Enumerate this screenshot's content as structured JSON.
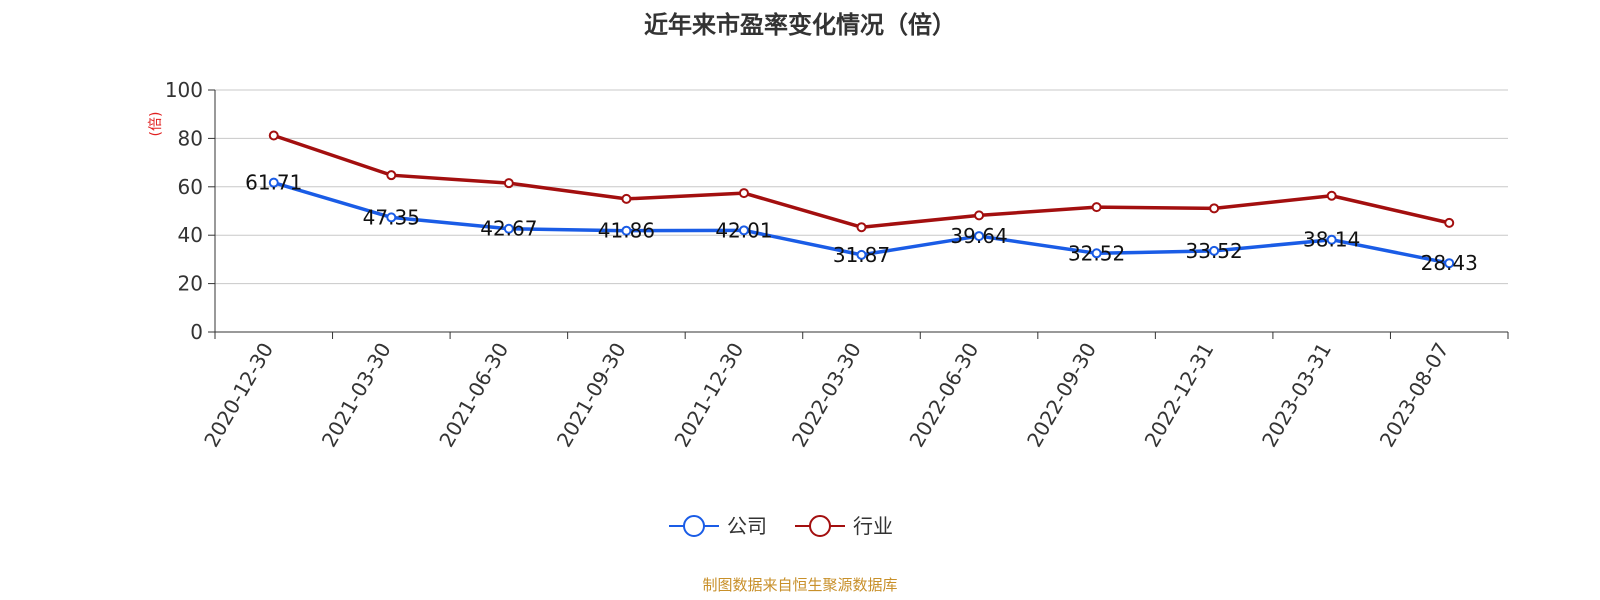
{
  "chart_data": {
    "type": "line",
    "title": "近年来市盈率变化情况（倍）",
    "ylabel": "(倍)",
    "xlabel": "",
    "ylim": [
      0,
      100
    ],
    "yticks": [
      0,
      20,
      40,
      60,
      80,
      100
    ],
    "grid": true,
    "categories": [
      "2020-12-30",
      "2021-03-30",
      "2021-06-30",
      "2021-09-30",
      "2021-12-30",
      "2022-03-30",
      "2022-06-30",
      "2022-09-30",
      "2022-12-31",
      "2023-03-31",
      "2023-08-07"
    ],
    "legend_position": "bottom",
    "series": [
      {
        "name": "公司",
        "color": "#1a5ce6",
        "values": [
          61.71,
          47.35,
          42.67,
          41.86,
          42.01,
          31.87,
          39.64,
          32.52,
          33.52,
          38.14,
          28.43
        ],
        "data_labels": [
          "61.71",
          "47.35",
          "42.67",
          "41.86",
          "42.01",
          "31.87",
          "39.64",
          "32.52",
          "33.52",
          "38.14",
          "28.43"
        ]
      },
      {
        "name": "行业",
        "color": "#a30f0f",
        "values": [
          81.2,
          64.8,
          61.5,
          55.0,
          57.4,
          43.3,
          48.2,
          51.6,
          51.1,
          56.3,
          45.1
        ]
      }
    ],
    "source": "制图数据来自恒生聚源数据库",
    "source_color": "#c8902a",
    "ylabel_color": "#e02020"
  }
}
